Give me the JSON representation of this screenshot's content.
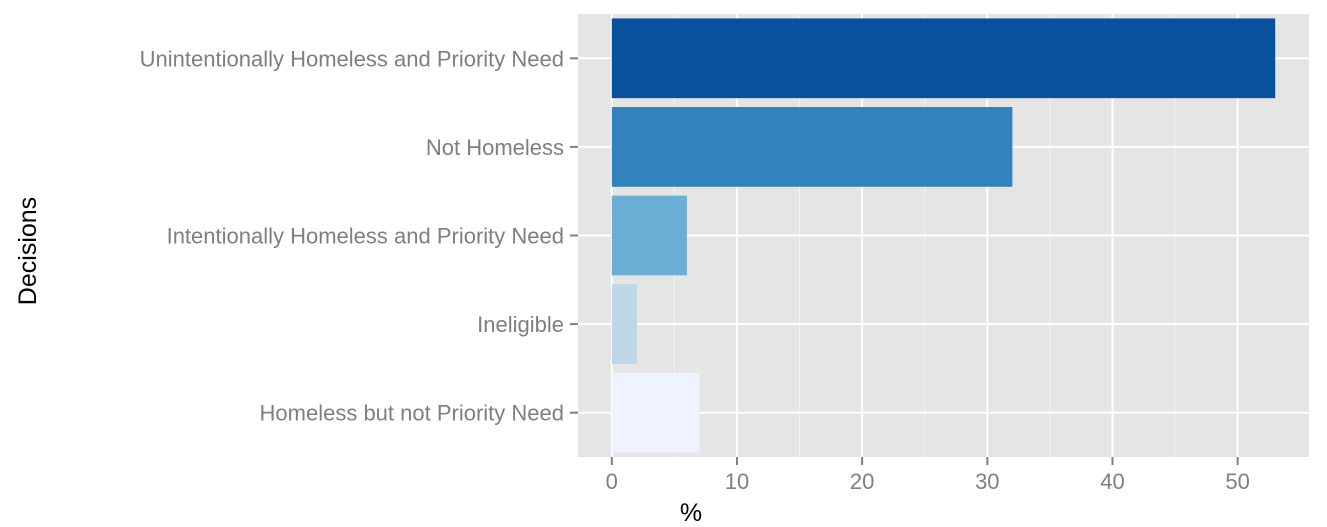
{
  "chart_data": {
    "type": "bar",
    "orientation": "horizontal",
    "title": "",
    "xlabel": "%",
    "ylabel": "Decisions",
    "categories": [
      "Unintentionally Homeless and Priority Need",
      "Not Homeless",
      "Intentionally Homeless and Priority Need",
      "Ineligible",
      "Homeless but not Priority Need"
    ],
    "values": [
      53,
      32,
      6,
      2,
      7
    ],
    "colors": [
      "#08519c",
      "#3182bd",
      "#6baed6",
      "#bdd7e7",
      "#eff3ff"
    ],
    "xlim": [
      -2.7,
      55.7
    ],
    "xticks": [
      0,
      10,
      20,
      30,
      40,
      50
    ],
    "grid": true,
    "legend": "none",
    "panel_background": "#e5e5e5",
    "grid_color": "#ffffff"
  }
}
